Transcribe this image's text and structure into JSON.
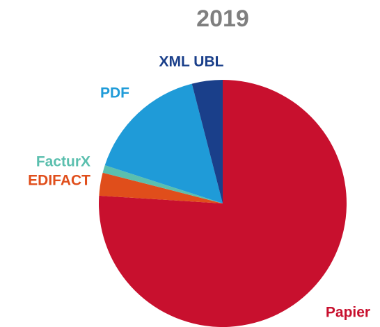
{
  "chart_data": {
    "type": "pie",
    "title": "2019",
    "categories": [
      "Papier",
      "EDIFACT",
      "FacturX",
      "PDF",
      "XML UBL"
    ],
    "values": [
      76,
      3,
      1,
      16,
      4
    ],
    "colors": [
      "#c8102e",
      "#e04e1b",
      "#5bbfae",
      "#1f9bd8",
      "#1a3f8a"
    ]
  }
}
